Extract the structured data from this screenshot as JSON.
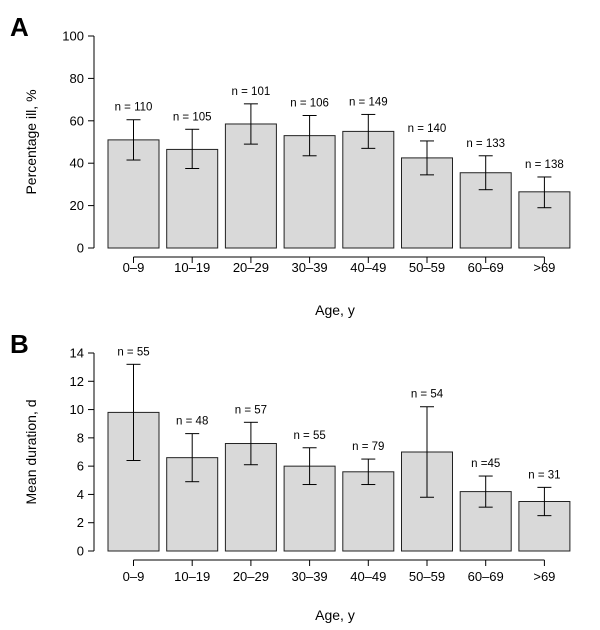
{
  "chart_data": [
    {
      "panel": "A",
      "type": "bar",
      "categories": [
        "0–9",
        "10–19",
        "20–29",
        "30–39",
        "40–49",
        "50–59",
        "60–69",
        ">69"
      ],
      "values": [
        51,
        46.5,
        58.5,
        53,
        55,
        42.5,
        35.5,
        26.5
      ],
      "error_low": [
        41.5,
        37.5,
        49,
        43.5,
        47,
        34.5,
        27.5,
        19
      ],
      "error_high": [
        60.5,
        56,
        68,
        62.5,
        63,
        50.5,
        43.5,
        33.5
      ],
      "annotations": [
        "n = 110",
        "n = 105",
        "n = 101",
        "n = 106",
        "n = 149",
        "n = 140",
        "n = 133",
        "n = 138"
      ],
      "xlabel": "Age, y",
      "ylabel": "Percentage ill, %",
      "ylim": [
        0,
        100
      ],
      "yticks": [
        0,
        20,
        40,
        60,
        80,
        100
      ],
      "grid": false
    },
    {
      "panel": "B",
      "type": "bar",
      "categories": [
        "0–9",
        "10–19",
        "20–29",
        "30–39",
        "40–49",
        "50–59",
        "60–69",
        ">69"
      ],
      "values": [
        9.8,
        6.6,
        7.6,
        6.0,
        5.6,
        7.0,
        4.2,
        3.5
      ],
      "error_low": [
        6.4,
        4.9,
        6.1,
        4.7,
        4.7,
        3.8,
        3.1,
        2.5
      ],
      "error_high": [
        13.2,
        8.3,
        9.1,
        7.3,
        6.5,
        10.2,
        5.3,
        4.5
      ],
      "annotations": [
        "n = 55",
        "n = 48",
        "n = 57",
        "n = 55",
        "n = 79",
        "n = 54",
        "n =45",
        "n = 31"
      ],
      "xlabel": "Age, y",
      "ylabel": "Mean duration, d",
      "ylim": [
        0,
        14
      ],
      "yticks": [
        0,
        2,
        4,
        6,
        8,
        10,
        12,
        14
      ],
      "grid": false
    }
  ]
}
